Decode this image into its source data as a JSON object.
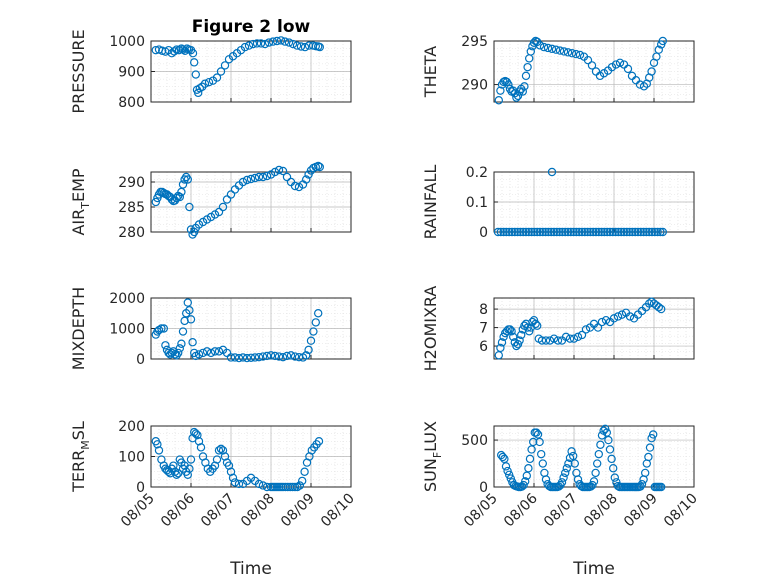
{
  "title": "Figure 2 low",
  "xlabel": "Time",
  "colors": {
    "marker": "#0072BD",
    "axis": "#262626",
    "grid": "#b8b8b8"
  },
  "chart_data": [
    {
      "type": "scatter",
      "ylabel": "PRESSURE",
      "ylabel_sub": "",
      "ylabel_tail": "",
      "ylim": [
        800,
        1000
      ],
      "yticks": [
        800,
        900,
        1000
      ],
      "xlim": [
        0,
        5
      ],
      "xticks": [
        "08/05",
        "08/06",
        "08/07",
        "08/08",
        "08/09",
        "08/10"
      ],
      "x": [
        0.12,
        0.2,
        0.28,
        0.36,
        0.44,
        0.52,
        0.58,
        0.64,
        0.7,
        0.76,
        0.8,
        0.85,
        0.9,
        0.95,
        1.0,
        1.05,
        1.08,
        1.12,
        1.15,
        1.18,
        1.22,
        1.28,
        1.35,
        1.45,
        1.55,
        1.65,
        1.75,
        1.85,
        1.95,
        2.05,
        2.15,
        2.25,
        2.35,
        2.45,
        2.55,
        2.65,
        2.75,
        2.85,
        2.95,
        3.05,
        3.15,
        3.25,
        3.35,
        3.45,
        3.55,
        3.65,
        3.75,
        3.85,
        3.95,
        4.05,
        4.12,
        4.18,
        4.22
      ],
      "y": [
        970,
        972,
        968,
        965,
        970,
        960,
        966,
        972,
        970,
        975,
        972,
        968,
        975,
        972,
        970,
        960,
        930,
        890,
        840,
        830,
        845,
        850,
        860,
        865,
        870,
        880,
        900,
        920,
        940,
        950,
        960,
        970,
        980,
        985,
        990,
        992,
        992,
        990,
        995,
        998,
        1000,
        1002,
        998,
        995,
        990,
        985,
        982,
        980,
        985,
        985,
        983,
        982,
        980
      ]
    },
    {
      "type": "scatter",
      "ylabel": "THETA",
      "ylabel_sub": "",
      "ylabel_tail": "",
      "ylim": [
        288,
        295
      ],
      "yticks": [
        290,
        295
      ],
      "xlim": [
        0,
        5
      ],
      "xticks": [
        "08/05",
        "08/06",
        "08/07",
        "08/08",
        "08/09",
        "08/10"
      ],
      "x": [
        0.12,
        0.16,
        0.2,
        0.24,
        0.28,
        0.32,
        0.36,
        0.4,
        0.44,
        0.48,
        0.52,
        0.56,
        0.6,
        0.64,
        0.68,
        0.72,
        0.76,
        0.8,
        0.84,
        0.88,
        0.92,
        0.96,
        1.0,
        1.04,
        1.08,
        1.15,
        1.25,
        1.35,
        1.45,
        1.55,
        1.65,
        1.75,
        1.85,
        1.95,
        2.05,
        2.15,
        2.25,
        2.35,
        2.45,
        2.55,
        2.65,
        2.75,
        2.85,
        2.95,
        3.05,
        3.15,
        3.25,
        3.35,
        3.45,
        3.55,
        3.65,
        3.75,
        3.82,
        3.88,
        3.94,
        4.0,
        4.06,
        4.12,
        4.18,
        4.22
      ],
      "y": [
        288.2,
        289.3,
        290.0,
        290.3,
        290.4,
        290.3,
        290.0,
        289.5,
        289.2,
        289.3,
        289.0,
        288.5,
        288.7,
        289.2,
        289.5,
        289.2,
        289.8,
        291.0,
        292.0,
        293.0,
        293.8,
        294.4,
        294.8,
        295.0,
        294.9,
        294.5,
        294.3,
        294.2,
        294.1,
        294.0,
        293.9,
        293.8,
        293.7,
        293.6,
        293.5,
        293.4,
        293.2,
        292.8,
        292.2,
        291.5,
        291.0,
        291.3,
        291.6,
        292.0,
        292.3,
        292.5,
        292.3,
        291.8,
        291.0,
        290.5,
        290.0,
        289.8,
        290.1,
        290.8,
        291.5,
        292.5,
        293.2,
        294.0,
        294.6,
        295.0
      ]
    },
    {
      "type": "scatter",
      "ylabel": "AIR",
      "ylabel_sub": "T",
      "ylabel_tail": "EMP",
      "ylim": [
        280,
        292
      ],
      "yticks": [
        280,
        285,
        290
      ],
      "xlim": [
        0,
        5
      ],
      "xticks": [
        "08/05",
        "08/06",
        "08/07",
        "08/08",
        "08/09",
        "08/10"
      ],
      "x": [
        0.12,
        0.16,
        0.2,
        0.24,
        0.28,
        0.32,
        0.36,
        0.4,
        0.44,
        0.48,
        0.52,
        0.56,
        0.6,
        0.64,
        0.68,
        0.72,
        0.76,
        0.8,
        0.84,
        0.88,
        0.92,
        0.96,
        1.0,
        1.04,
        1.08,
        1.12,
        1.2,
        1.3,
        1.4,
        1.5,
        1.6,
        1.7,
        1.8,
        1.9,
        2.0,
        2.1,
        2.2,
        2.3,
        2.4,
        2.5,
        2.6,
        2.7,
        2.8,
        2.9,
        3.0,
        3.1,
        3.2,
        3.3,
        3.4,
        3.5,
        3.6,
        3.7,
        3.8,
        3.88,
        3.94,
        4.0,
        4.06,
        4.12,
        4.18,
        4.22
      ],
      "y": [
        286.0,
        286.8,
        287.5,
        288.0,
        288.0,
        287.8,
        287.6,
        287.5,
        287.2,
        287.0,
        286.5,
        286.2,
        286.3,
        286.8,
        287.2,
        287.0,
        288.0,
        289.5,
        290.5,
        291.0,
        290.5,
        285.0,
        280.5,
        279.5,
        280.0,
        280.8,
        281.5,
        282.0,
        282.5,
        283.0,
        283.5,
        284.0,
        285.0,
        286.5,
        287.5,
        288.5,
        289.3,
        290.0,
        290.4,
        290.6,
        290.8,
        291.0,
        291.0,
        291.2,
        291.5,
        292.0,
        292.4,
        292.2,
        291.0,
        290.0,
        289.2,
        289.0,
        289.5,
        290.5,
        291.5,
        292.3,
        292.8,
        293.0,
        293.2,
        293.0
      ]
    },
    {
      "type": "scatter",
      "ylabel": "RAINFALL",
      "ylabel_sub": "",
      "ylabel_tail": "",
      "ylim": [
        0,
        0.2
      ],
      "yticks": [
        0,
        0.1,
        0.2
      ],
      "xlim": [
        0,
        5
      ],
      "xticks": [
        "08/05",
        "08/06",
        "08/07",
        "08/08",
        "08/09",
        "08/10"
      ],
      "x": [
        0.1,
        0.17,
        0.24,
        0.31,
        0.38,
        0.45,
        0.52,
        0.59,
        0.66,
        0.73,
        0.8,
        0.87,
        0.94,
        1.01,
        1.08,
        1.15,
        1.22,
        1.29,
        1.36,
        1.43,
        1.5,
        1.57,
        1.64,
        1.71,
        1.78,
        1.85,
        1.92,
        1.99,
        2.06,
        2.13,
        2.2,
        2.27,
        2.34,
        2.41,
        2.48,
        2.55,
        2.62,
        2.69,
        2.76,
        2.83,
        2.9,
        2.97,
        3.04,
        3.11,
        3.18,
        3.25,
        3.32,
        3.39,
        3.46,
        3.53,
        3.6,
        3.67,
        3.74,
        3.81,
        3.88,
        3.95,
        4.02,
        4.09,
        4.16,
        4.22,
        1.45
      ],
      "y": [
        0,
        0,
        0,
        0,
        0,
        0,
        0,
        0,
        0,
        0,
        0,
        0,
        0,
        0,
        0,
        0,
        0,
        0,
        0,
        0,
        0,
        0,
        0,
        0,
        0,
        0,
        0,
        0,
        0,
        0,
        0,
        0,
        0,
        0,
        0,
        0,
        0,
        0,
        0,
        0,
        0,
        0,
        0,
        0,
        0,
        0,
        0,
        0,
        0,
        0,
        0,
        0,
        0,
        0,
        0,
        0,
        0,
        0,
        0,
        0,
        0.2
      ]
    },
    {
      "type": "scatter",
      "ylabel": "MIXDEPTH",
      "ylabel_sub": "",
      "ylabel_tail": "",
      "ylim": [
        0,
        2000
      ],
      "yticks": [
        0,
        1000,
        2000
      ],
      "xlim": [
        0,
        5
      ],
      "xticks": [
        "08/05",
        "08/06",
        "08/07",
        "08/08",
        "08/09",
        "08/10"
      ],
      "x": [
        0.12,
        0.16,
        0.2,
        0.26,
        0.32,
        0.36,
        0.4,
        0.44,
        0.48,
        0.52,
        0.56,
        0.6,
        0.64,
        0.68,
        0.72,
        0.76,
        0.8,
        0.84,
        0.88,
        0.92,
        0.96,
        1.0,
        1.04,
        1.08,
        1.12,
        1.2,
        1.3,
        1.4,
        1.5,
        1.6,
        1.7,
        1.8,
        1.9,
        2.0,
        2.1,
        2.2,
        2.3,
        2.4,
        2.5,
        2.6,
        2.7,
        2.8,
        2.9,
        3.0,
        3.1,
        3.2,
        3.3,
        3.4,
        3.5,
        3.6,
        3.7,
        3.8,
        3.88,
        3.94,
        4.0,
        4.06,
        4.12,
        4.18
      ],
      "y": [
        800,
        900,
        950,
        1000,
        1000,
        450,
        300,
        200,
        150,
        200,
        250,
        150,
        120,
        200,
        350,
        500,
        900,
        1250,
        1500,
        1850,
        1600,
        1300,
        550,
        200,
        100,
        150,
        200,
        250,
        200,
        250,
        250,
        300,
        200,
        50,
        50,
        30,
        50,
        30,
        40,
        50,
        60,
        80,
        100,
        120,
        100,
        80,
        60,
        100,
        120,
        80,
        60,
        50,
        120,
        300,
        600,
        900,
        1200,
        1500
      ]
    },
    {
      "type": "scatter",
      "ylabel": "H2OMIXRA",
      "ylabel_sub": "",
      "ylabel_tail": "",
      "ylim": [
        5.3,
        8.6
      ],
      "yticks": [
        6,
        7,
        8
      ],
      "xlim": [
        0,
        5
      ],
      "xticks": [
        "08/05",
        "08/06",
        "08/07",
        "08/08",
        "08/09",
        "08/10"
      ],
      "x": [
        0.12,
        0.16,
        0.2,
        0.24,
        0.28,
        0.32,
        0.36,
        0.4,
        0.44,
        0.48,
        0.52,
        0.56,
        0.6,
        0.64,
        0.68,
        0.72,
        0.76,
        0.8,
        0.84,
        0.88,
        0.92,
        0.96,
        1.0,
        1.04,
        1.08,
        1.12,
        1.2,
        1.3,
        1.4,
        1.5,
        1.6,
        1.7,
        1.8,
        1.9,
        2.0,
        2.1,
        2.2,
        2.3,
        2.4,
        2.5,
        2.6,
        2.7,
        2.8,
        2.9,
        3.0,
        3.1,
        3.2,
        3.3,
        3.4,
        3.5,
        3.6,
        3.7,
        3.8,
        3.88,
        3.94,
        4.0,
        4.06,
        4.12,
        4.18
      ],
      "y": [
        5.5,
        5.9,
        6.2,
        6.5,
        6.7,
        6.8,
        6.9,
        6.9,
        6.8,
        6.5,
        6.2,
        6.0,
        6.1,
        6.3,
        6.6,
        6.9,
        7.1,
        7.2,
        7.0,
        6.8,
        7.0,
        7.3,
        7.4,
        7.2,
        7.1,
        6.4,
        6.3,
        6.3,
        6.3,
        6.4,
        6.3,
        6.3,
        6.5,
        6.4,
        6.4,
        6.5,
        6.6,
        6.9,
        7.0,
        7.2,
        7.0,
        7.3,
        7.4,
        7.3,
        7.5,
        7.6,
        7.7,
        7.8,
        7.6,
        7.5,
        7.7,
        7.9,
        8.1,
        8.3,
        8.4,
        8.3,
        8.2,
        8.1,
        8.0
      ]
    },
    {
      "type": "scatter",
      "ylabel": "TERR",
      "ylabel_sub": "M",
      "ylabel_tail": "SL",
      "ylim": [
        0,
        200
      ],
      "yticks": [
        0,
        100,
        200
      ],
      "xlim": [
        0,
        5
      ],
      "xticks": [
        "08/05",
        "08/06",
        "08/07",
        "08/08",
        "08/09",
        "08/10"
      ],
      "x": [
        0.12,
        0.16,
        0.2,
        0.26,
        0.32,
        0.36,
        0.4,
        0.44,
        0.48,
        0.52,
        0.56,
        0.6,
        0.64,
        0.68,
        0.72,
        0.76,
        0.8,
        0.84,
        0.88,
        0.92,
        0.96,
        1.0,
        1.04,
        1.08,
        1.12,
        1.16,
        1.2,
        1.25,
        1.3,
        1.36,
        1.42,
        1.48,
        1.54,
        1.6,
        1.65,
        1.7,
        1.75,
        1.8,
        1.85,
        1.9,
        1.95,
        2.0,
        2.05,
        2.1,
        2.2,
        2.3,
        2.4,
        2.5,
        2.6,
        2.7,
        2.8,
        2.9,
        3.0,
        3.05,
        3.1,
        3.15,
        3.2,
        3.25,
        3.3,
        3.36,
        3.42,
        3.48,
        3.54,
        3.6,
        3.66,
        3.72,
        3.78,
        3.84,
        3.9,
        3.96,
        4.02,
        4.08,
        4.14,
        4.2
      ],
      "y": [
        150,
        140,
        120,
        90,
        70,
        60,
        55,
        50,
        45,
        60,
        70,
        50,
        40,
        45,
        90,
        80,
        60,
        70,
        50,
        40,
        60,
        90,
        160,
        180,
        175,
        170,
        150,
        130,
        100,
        80,
        60,
        50,
        60,
        70,
        90,
        120,
        125,
        120,
        100,
        80,
        70,
        50,
        30,
        15,
        10,
        10,
        20,
        30,
        20,
        10,
        5,
        0,
        0,
        0,
        0,
        0,
        0,
        0,
        0,
        0,
        0,
        0,
        0,
        0,
        0,
        5,
        20,
        50,
        80,
        100,
        120,
        130,
        140,
        150
      ]
    },
    {
      "type": "scatter",
      "ylabel": "SUN",
      "ylabel_sub": "F",
      "ylabel_tail": "LUX",
      "ylim": [
        0,
        650
      ],
      "yticks": [
        0,
        500
      ],
      "xlim": [
        0,
        5
      ],
      "xticks": [
        "08/05",
        "08/06",
        "08/07",
        "08/08",
        "08/09",
        "08/10"
      ],
      "x": [
        0.18,
        0.22,
        0.26,
        0.3,
        0.34,
        0.38,
        0.42,
        0.46,
        0.5,
        0.54,
        0.58,
        0.62,
        0.66,
        0.7,
        0.74,
        0.78,
        0.82,
        0.86,
        0.9,
        0.94,
        0.98,
        1.02,
        1.06,
        1.1,
        1.14,
        1.18,
        1.22,
        1.26,
        1.3,
        1.34,
        1.38,
        1.42,
        1.46,
        1.5,
        1.54,
        1.58,
        1.62,
        1.66,
        1.7,
        1.74,
        1.78,
        1.82,
        1.86,
        1.9,
        1.94,
        1.98,
        2.02,
        2.06,
        2.1,
        2.14,
        2.18,
        2.22,
        2.26,
        2.3,
        2.34,
        2.38,
        2.42,
        2.46,
        2.5,
        2.54,
        2.58,
        2.62,
        2.66,
        2.7,
        2.74,
        2.78,
        2.82,
        2.86,
        2.9,
        2.94,
        2.98,
        3.02,
        3.06,
        3.1,
        3.14,
        3.18,
        3.22,
        3.26,
        3.3,
        3.34,
        3.38,
        3.42,
        3.46,
        3.5,
        3.54,
        3.58,
        3.62,
        3.66,
        3.7,
        3.74,
        3.78,
        3.82,
        3.86,
        3.9,
        3.94,
        3.98,
        4.02,
        4.06,
        4.1,
        4.14,
        4.18
      ],
      "y": [
        340,
        320,
        300,
        220,
        170,
        130,
        90,
        50,
        20,
        10,
        5,
        0,
        0,
        5,
        20,
        60,
        120,
        200,
        300,
        400,
        480,
        580,
        580,
        560,
        480,
        350,
        250,
        150,
        80,
        30,
        10,
        0,
        0,
        0,
        0,
        0,
        5,
        20,
        50,
        100,
        150,
        200,
        250,
        310,
        380,
        330,
        250,
        150,
        80,
        30,
        10,
        0,
        0,
        0,
        0,
        0,
        5,
        20,
        60,
        150,
        250,
        350,
        450,
        550,
        600,
        620,
        580,
        500,
        400,
        300,
        200,
        100,
        50,
        10,
        0,
        0,
        0,
        0,
        0,
        0,
        0,
        0,
        0,
        0,
        0,
        0,
        0,
        5,
        30,
        80,
        150,
        250,
        320,
        420,
        520,
        560,
        0,
        0,
        0,
        0,
        0
      ]
    }
  ]
}
